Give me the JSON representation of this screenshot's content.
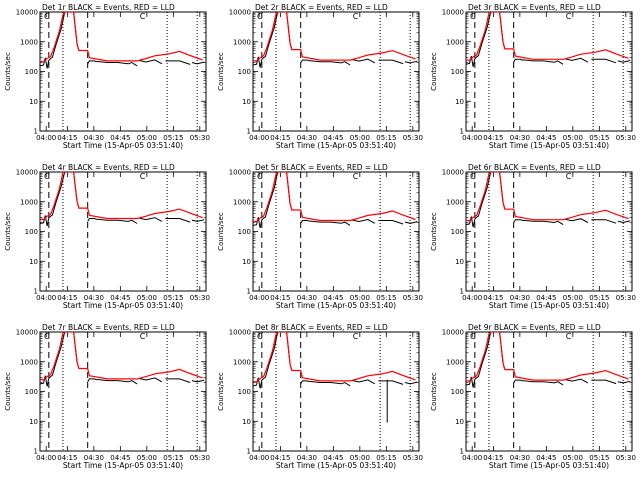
{
  "figure": {
    "xlabel": "Start Time (15-Apr-05 03:51:40)",
    "ylabel": "Counts/sec",
    "xticks": [
      "04:00",
      "04:15",
      "04:30",
      "04:45",
      "05:00",
      "05:15",
      "05:30"
    ],
    "yticks": [
      "1",
      "10",
      "100",
      "1000",
      "10000"
    ],
    "marker": "C",
    "colors": {
      "events": "#000000",
      "lld": "#ff0000",
      "axes": "#000000",
      "background": "#ffffff"
    }
  },
  "chart_data": [
    {
      "type": "line",
      "title": "Det 1r BLACK = Events, RED = LLD",
      "xlabel": "Start Time (15-Apr-05 03:51:40)",
      "ylabel": "Counts/sec",
      "ylog": true,
      "ylim": [
        1,
        10000
      ],
      "series": [
        {
          "name": "Events",
          "color": "#000000"
        },
        {
          "name": "LLD",
          "color": "#ff0000"
        }
      ]
    },
    {
      "type": "line",
      "title": "Det 2r BLACK = Events, RED = LLD",
      "xlabel": "Start Time (15-Apr-05 03:51:40)",
      "ylabel": "Counts/sec",
      "ylog": true,
      "ylim": [
        1,
        10000
      ],
      "series": [
        {
          "name": "Events",
          "color": "#000000"
        },
        {
          "name": "LLD",
          "color": "#ff0000"
        }
      ]
    },
    {
      "type": "line",
      "title": "Det 3r BLACK = Events, RED = LLD",
      "xlabel": "Start Time (15-Apr-05 03:51:40)",
      "ylabel": "Counts/sec",
      "ylog": true,
      "ylim": [
        1,
        10000
      ],
      "series": [
        {
          "name": "Events",
          "color": "#000000"
        },
        {
          "name": "LLD",
          "color": "#ff0000"
        }
      ]
    },
    {
      "type": "line",
      "title": "Det 4r BLACK = Events, RED = LLD",
      "xlabel": "Start Time (15-Apr-05 03:51:40)",
      "ylabel": "Counts/sec",
      "ylog": true,
      "ylim": [
        1,
        10000
      ],
      "series": [
        {
          "name": "Events",
          "color": "#000000"
        },
        {
          "name": "LLD",
          "color": "#ff0000"
        }
      ]
    },
    {
      "type": "line",
      "title": "Det 5r BLACK = Events, RED = LLD",
      "xlabel": "Start Time (15-Apr-05 03:51:40)",
      "ylabel": "Counts/sec",
      "ylog": true,
      "ylim": [
        1,
        10000
      ],
      "series": [
        {
          "name": "Events",
          "color": "#000000"
        },
        {
          "name": "LLD",
          "color": "#ff0000"
        }
      ]
    },
    {
      "type": "line",
      "title": "Det 6r BLACK = Events, RED = LLD",
      "xlabel": "Start Time (15-Apr-05 03:51:40)",
      "ylabel": "Counts/sec",
      "ylog": true,
      "ylim": [
        1,
        10000
      ],
      "series": [
        {
          "name": "Events",
          "color": "#000000"
        },
        {
          "name": "LLD",
          "color": "#ff0000"
        }
      ]
    },
    {
      "type": "line",
      "title": "Det 7r BLACK = Events, RED = LLD",
      "xlabel": "Start Time (15-Apr-05 03:51:40)",
      "ylabel": "Counts/sec",
      "ylog": true,
      "ylim": [
        1,
        10000
      ],
      "series": [
        {
          "name": "Events",
          "color": "#000000"
        },
        {
          "name": "LLD",
          "color": "#ff0000"
        }
      ]
    },
    {
      "type": "line",
      "title": "Det 8r BLACK = Events, RED = LLD",
      "xlabel": "Start Time (15-Apr-05 03:51:40)",
      "ylabel": "Counts/sec",
      "ylog": true,
      "ylim": [
        1,
        10000
      ],
      "series": [
        {
          "name": "Events",
          "color": "#000000"
        },
        {
          "name": "LLD",
          "color": "#ff0000"
        }
      ]
    },
    {
      "type": "line",
      "title": "Det 9r BLACK = Events, RED = LLD",
      "xlabel": "Start Time (15-Apr-05 03:51:40)",
      "ylabel": "Counts/sec",
      "ylog": true,
      "ylim": [
        1,
        10000
      ],
      "series": [
        {
          "name": "Events",
          "color": "#000000"
        },
        {
          "name": "LLD",
          "color": "#ff0000"
        }
      ]
    }
  ]
}
